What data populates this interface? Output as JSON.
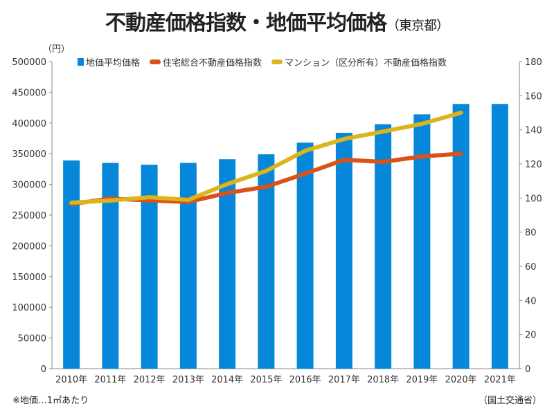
{
  "title": "不動産価格指数・地価平均価格",
  "subtitle": "（東京都）",
  "chart_data": {
    "type": "bar+line",
    "title": "不動産価格指数・地価平均価格（東京都）",
    "y_left_unit": "（円）",
    "categories": [
      "2010年",
      "2011年",
      "2012年",
      "2013年",
      "2014年",
      "2015年",
      "2016年",
      "2017年",
      "2018年",
      "2019年",
      "2020年",
      "2021年"
    ],
    "y_left": {
      "min": 0,
      "max": 500000,
      "ticks": [
        0,
        50000,
        100000,
        150000,
        200000,
        250000,
        300000,
        350000,
        400000,
        450000,
        500000
      ]
    },
    "y_right": {
      "min": 0,
      "max": 180,
      "ticks": [
        0,
        20,
        40,
        60,
        80,
        100,
        120,
        140,
        160,
        180
      ]
    },
    "legend_position": "top",
    "grid": false,
    "series": [
      {
        "name": "地価平均価格",
        "type": "bar",
        "axis": "left",
        "color": "#0787d9",
        "values": [
          339000,
          335000,
          332000,
          335000,
          341000,
          349000,
          368000,
          384000,
          398000,
          414000,
          431000,
          431000
        ]
      },
      {
        "name": "住宅総合不動産価格指数",
        "type": "line",
        "axis": "right",
        "color": "#db5219",
        "values": [
          96.5,
          99.7,
          98.6,
          97.7,
          103.0,
          106.6,
          114.3,
          122.4,
          121.2,
          124.4,
          126.0,
          null
        ]
      },
      {
        "name": "マンション（区分所有）不動産価格指数",
        "type": "line",
        "axis": "right",
        "color": "#dcb41c",
        "values": [
          97.3,
          98.5,
          100.5,
          98.9,
          108.2,
          115.9,
          127.7,
          134.6,
          139.0,
          143.5,
          150.0,
          null
        ]
      }
    ]
  },
  "footnote_left": "※地価…1㎡あたり",
  "footnote_right": "（国土交通省）"
}
